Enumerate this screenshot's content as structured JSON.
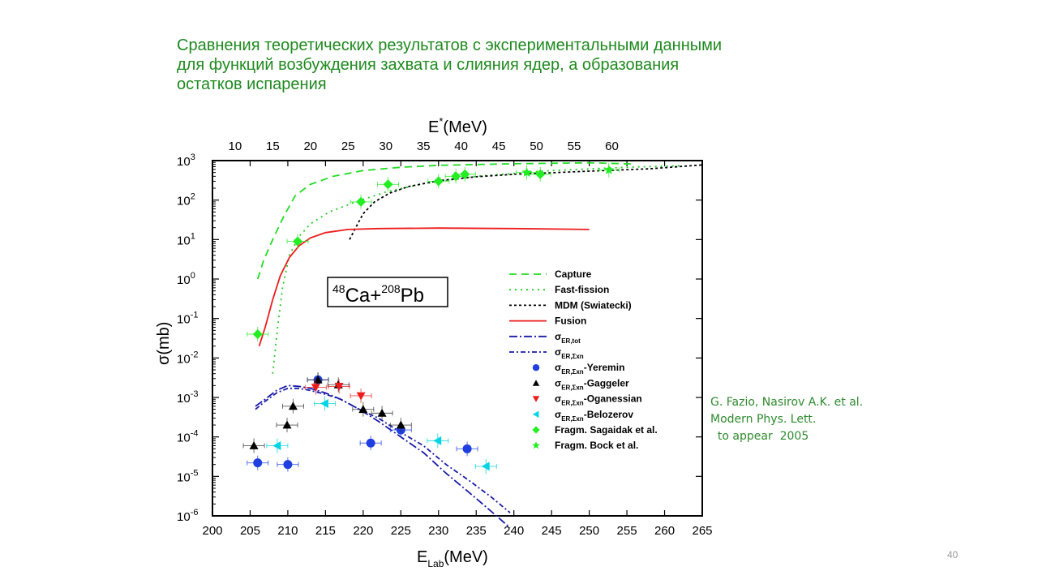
{
  "title": {
    "line1": "Сравнения  теоретических результатов  с экспериментальными данными",
    "line2": "для функций возбуждения захвата и слияния ядер, а образования",
    "line3": "остатков испарения"
  },
  "reference": {
    "line1": "G. Fazio, Nasirov A.K. et al.",
    "line2": "Modern Phys. Lett.",
    "line3": "  to appear  2005"
  },
  "page_number": "40",
  "chart_data": {
    "type": "scatter",
    "title": "",
    "reaction_label": {
      "a": "48",
      "b": "Ca+",
      "c": "208",
      "d": "Pb"
    },
    "xlabel": {
      "main": "E",
      "sub": "Lab",
      "unit": "(MeV)"
    },
    "ylabel": {
      "sigma": "σ",
      "unit": "(mb)"
    },
    "top_xlabel": {
      "main": "E",
      "sup": "*",
      "unit": "(MeV)"
    },
    "xlim": [
      200,
      265
    ],
    "ylim_log10": [
      -6,
      3
    ],
    "x_ticks": [
      "200",
      "205",
      "210",
      "215",
      "220",
      "225",
      "230",
      "235",
      "240",
      "245",
      "250",
      "255",
      "260",
      "265"
    ],
    "top_x_ticks": [
      "10",
      "15",
      "20",
      "25",
      "30",
      "35",
      "40",
      "45",
      "50",
      "55",
      "60"
    ],
    "y_tick_base": "10",
    "y_tick_exponents": [
      "3",
      "2",
      "1",
      "0",
      "-1",
      "-2",
      "-3",
      "-4",
      "-5",
      "-6"
    ],
    "curves": [
      {
        "name": "Capture",
        "color": "#22dd22",
        "dash": "9,6",
        "x": [
          206.0,
          206.8,
          208.0,
          209.5,
          211.0,
          213.0,
          216.0,
          220.0,
          225.0,
          230.0,
          240.0,
          250.0,
          256.0
        ],
        "y": [
          1.0,
          3.0,
          10.0,
          40.0,
          130.0,
          250.0,
          400.0,
          560.0,
          680.0,
          760.0,
          830.0,
          880.0,
          820.0
        ]
      },
      {
        "name": "Fast-fission",
        "color": "#22cc22",
        "dash": "2,5",
        "x": [
          208.0,
          208.6,
          209.3,
          210.2,
          211.5,
          213.0,
          215.5,
          219.0,
          223.0,
          228.0,
          235.0,
          245.0,
          255.0,
          262.0
        ],
        "y": [
          0.004,
          0.05,
          0.6,
          4.0,
          12.0,
          25.0,
          50.0,
          90.0,
          160.0,
          260.0,
          400.0,
          560.0,
          680.0,
          740.0
        ]
      },
      {
        "name": "MDM (Swiatecki)",
        "color": "#000000",
        "dash": "3,3",
        "x": [
          218.2,
          219.0,
          220.0,
          221.5,
          223.5,
          226.0,
          230.0,
          235.0,
          240.0,
          250.0,
          258.0,
          265.0
        ],
        "y": [
          10.0,
          20.0,
          45.0,
          90.0,
          150.0,
          220.0,
          310.0,
          390.0,
          450.0,
          540.0,
          620.0,
          780.0
        ]
      },
      {
        "name": "Fusion",
        "color": "#ee1c1c",
        "dash": "",
        "x": [
          206.2,
          207.0,
          208.0,
          209.0,
          210.2,
          211.5,
          213.0,
          215.0,
          218.0,
          222.0,
          230.0,
          240.0,
          250.0
        ],
        "y": [
          0.02,
          0.06,
          0.3,
          1.2,
          3.5,
          7.0,
          11.0,
          15.0,
          18.0,
          19.0,
          19.5,
          19.0,
          18.0
        ]
      },
      {
        "name": "σER,tot",
        "color": "#1a1aaa",
        "dash": "10,3,2,3",
        "x": [
          205.7,
          207.0,
          208.5,
          210.0,
          211.5,
          213.0,
          215.0,
          217.0,
          219.5,
          222.0,
          225.0,
          228.0,
          231.0,
          234.0,
          237.0,
          239.5
        ],
        "y": [
          0.0006,
          0.0009,
          0.0015,
          0.002,
          0.0019,
          0.0017,
          0.0013,
          0.0009,
          0.0005,
          0.00025,
          0.0001,
          4e-05,
          1.2e-05,
          4e-06,
          1.3e-06,
          5e-07
        ]
      },
      {
        "name": "σER,Σxn",
        "color": "#1a1aaa",
        "dash": "6,3,2,3",
        "x": [
          205.7,
          207.0,
          208.5,
          210.0,
          211.5,
          213.0,
          215.0,
          217.0,
          219.5,
          222.0,
          225.0,
          228.0,
          231.0,
          234.0,
          237.0,
          239.5
        ],
        "y": [
          0.0005,
          0.0008,
          0.0013,
          0.0017,
          0.0017,
          0.0015,
          0.0012,
          0.0009,
          0.0005,
          0.0003,
          0.00013,
          6e-05,
          2e-05,
          8e-06,
          3e-06,
          1.2e-06
        ]
      }
    ],
    "points": [
      {
        "name": "σER,Σxn-Yeremin",
        "marker": "circle",
        "color": "#1f3fe0",
        "x": [
          206.0,
          210.0,
          214.0,
          221.0,
          225.0,
          233.8
        ],
        "y": [
          2.2e-05,
          2e-05,
          0.0028,
          7e-05,
          0.00015,
          5e-05
        ]
      },
      {
        "name": "σER,Σxn-Gaggeler",
        "marker": "triangle-up",
        "color": "#000000",
        "x": [
          205.5,
          209.9,
          210.7,
          214.0,
          216.7,
          220.0,
          222.5,
          225.0
        ],
        "y": [
          6e-05,
          0.0002,
          0.0006,
          0.0028,
          0.0021,
          0.0005,
          0.0004,
          0.0002
        ]
      },
      {
        "name": "σER,Σxn-Oganessian",
        "marker": "triangle-down",
        "color": "#ee1c1c",
        "x": [
          213.7,
          216.8,
          219.7
        ],
        "y": [
          0.0018,
          0.0019,
          0.0011
        ]
      },
      {
        "name": "σER,Σxn-Belozerov",
        "marker": "triangle-left",
        "color": "#00d5e5",
        "x": [
          208.6,
          214.9,
          229.9,
          236.3
        ],
        "y": [
          6e-05,
          0.0007,
          8e-05,
          1.8e-05
        ]
      },
      {
        "name": "Fragm. Sagaidak et al.",
        "marker": "diamond",
        "color": "#22ee22",
        "x": [
          206.0,
          211.3,
          219.7,
          223.3,
          230.0,
          232.3,
          233.5,
          243.5
        ],
        "y": [
          0.04,
          9.0,
          90.0,
          250.0,
          300.0,
          400.0,
          450.0,
          450.0
        ]
      },
      {
        "name": "Fragm. Bock et al.",
        "marker": "star",
        "color": "#22ee22",
        "x": [
          241.7,
          252.6
        ],
        "y": [
          500.0,
          580.0
        ]
      }
    ]
  }
}
